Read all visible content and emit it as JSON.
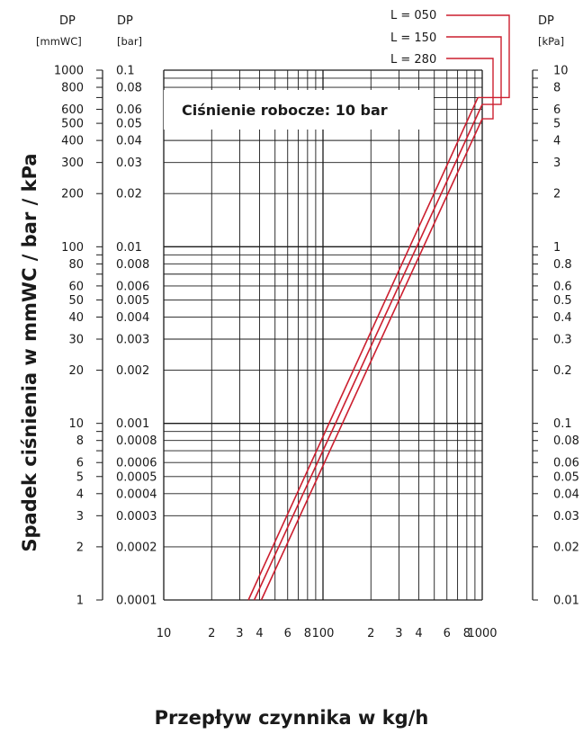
{
  "chart_data": {
    "type": "line",
    "x_scale": "log",
    "y_scale": "log",
    "xlim": [
      10,
      1000
    ],
    "ylim_mmWC": [
      1,
      1000
    ],
    "xlabel": "Przepływ czynnika w kg/h",
    "ylabel": "Spadek ciśnienia w mmWC / bar / kPa",
    "annotation": "Ciśnienie robocze: 10 bar",
    "grid": true,
    "axes": {
      "mmwc": {
        "header": "DP",
        "unit": "[mmWC]",
        "ticks": [
          {
            "label": "1000",
            "value": 1000
          },
          {
            "label": "800",
            "value": 800
          },
          {
            "label": "600",
            "value": 600
          },
          {
            "label": "500",
            "value": 500
          },
          {
            "label": "400",
            "value": 400
          },
          {
            "label": "300",
            "value": 300
          },
          {
            "label": "200",
            "value": 200
          },
          {
            "label": "100",
            "value": 100
          },
          {
            "label": "80",
            "value": 80
          },
          {
            "label": "60",
            "value": 60
          },
          {
            "label": "50",
            "value": 50
          },
          {
            "label": "40",
            "value": 40
          },
          {
            "label": "30",
            "value": 30
          },
          {
            "label": "20",
            "value": 20
          },
          {
            "label": "10",
            "value": 10
          },
          {
            "label": "8",
            "value": 8
          },
          {
            "label": "6",
            "value": 6
          },
          {
            "label": "5",
            "value": 5
          },
          {
            "label": "4",
            "value": 4
          },
          {
            "label": "3",
            "value": 3
          },
          {
            "label": "2",
            "value": 2
          },
          {
            "label": "1",
            "value": 1
          }
        ]
      },
      "bar": {
        "header": "DP",
        "unit": "[bar]",
        "ticks": [
          {
            "label": "0.1",
            "value": 1000
          },
          {
            "label": "0.08",
            "value": 800
          },
          {
            "label": "0.06",
            "value": 600
          },
          {
            "label": "0.05",
            "value": 500
          },
          {
            "label": "0.04",
            "value": 400
          },
          {
            "label": "0.03",
            "value": 300
          },
          {
            "label": "0.02",
            "value": 200
          },
          {
            "label": "0.01",
            "value": 100
          },
          {
            "label": "0.008",
            "value": 80
          },
          {
            "label": "0.006",
            "value": 60
          },
          {
            "label": "0.005",
            "value": 50
          },
          {
            "label": "0.004",
            "value": 40
          },
          {
            "label": "0.003",
            "value": 30
          },
          {
            "label": "0.002",
            "value": 20
          },
          {
            "label": "0.001",
            "value": 10
          },
          {
            "label": "0.0008",
            "value": 8
          },
          {
            "label": "0.0006",
            "value": 6
          },
          {
            "label": "0.0005",
            "value": 5
          },
          {
            "label": "0.0004",
            "value": 4
          },
          {
            "label": "0.0003",
            "value": 3
          },
          {
            "label": "0.0002",
            "value": 2
          },
          {
            "label": "0.0001",
            "value": 1
          }
        ]
      },
      "kpa": {
        "header": "DP",
        "unit": "[kPa]",
        "ticks": [
          {
            "label": "10",
            "value": 1000
          },
          {
            "label": "8",
            "value": 800
          },
          {
            "label": "6",
            "value": 600
          },
          {
            "label": "5",
            "value": 500
          },
          {
            "label": "4",
            "value": 400
          },
          {
            "label": "3",
            "value": 300
          },
          {
            "label": "2",
            "value": 200
          },
          {
            "label": "1",
            "value": 100
          },
          {
            "label": "0.8",
            "value": 80
          },
          {
            "label": "0.6",
            "value": 60
          },
          {
            "label": "0.5",
            "value": 50
          },
          {
            "label": "0.4",
            "value": 40
          },
          {
            "label": "0.3",
            "value": 30
          },
          {
            "label": "0.2",
            "value": 20
          },
          {
            "label": "0.1",
            "value": 10
          },
          {
            "label": "0.08",
            "value": 8
          },
          {
            "label": "0.06",
            "value": 6
          },
          {
            "label": "0.05",
            "value": 5
          },
          {
            "label": "0.04",
            "value": 4
          },
          {
            "label": "0.03",
            "value": 3
          },
          {
            "label": "0.02",
            "value": 2
          },
          {
            "label": "0.01",
            "value": 1
          }
        ]
      }
    },
    "x_ticks": [
      {
        "label": "10",
        "value": 10
      },
      {
        "label": "2",
        "value": 20
      },
      {
        "label": "3",
        "value": 30
      },
      {
        "label": "4",
        "value": 40
      },
      {
        "label": "6",
        "value": 60
      },
      {
        "label": "8",
        "value": 80
      },
      {
        "label": "100",
        "value": 100
      },
      {
        "label": "2",
        "value": 200
      },
      {
        "label": "3",
        "value": 300
      },
      {
        "label": "4",
        "value": 400
      },
      {
        "label": "6",
        "value": 600
      },
      {
        "label": "8",
        "value": 800
      },
      {
        "label": "1000",
        "value": 1000
      }
    ],
    "series": [
      {
        "name": "L = 050",
        "color": "#cc1f2f",
        "x": [
          34,
          940
        ],
        "y": [
          1,
          700
        ]
      },
      {
        "name": "L = 150",
        "color": "#cc1f2f",
        "x": [
          37,
          1000
        ],
        "y": [
          1,
          640
        ]
      },
      {
        "name": "L = 280",
        "color": "#cc1f2f",
        "x": [
          41,
          1000
        ],
        "y": [
          1,
          530
        ]
      }
    ]
  }
}
